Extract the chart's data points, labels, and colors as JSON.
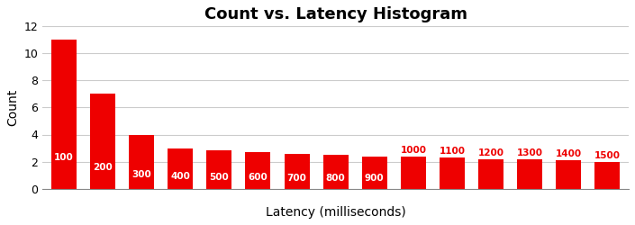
{
  "title": "Count vs. Latency Histogram",
  "xlabel": "Latency (milliseconds)",
  "ylabel": "Count",
  "bar_labels": [
    100,
    200,
    300,
    400,
    500,
    600,
    700,
    800,
    900,
    1000,
    1100,
    1200,
    1300,
    1400,
    1500
  ],
  "bar_heights": [
    11,
    7,
    4,
    3.0,
    2.85,
    2.7,
    2.6,
    2.5,
    2.4,
    2.4,
    2.3,
    2.2,
    2.2,
    2.1,
    2.0
  ],
  "bar_color": "#ee0000",
  "label_color_white": "#ffffff",
  "label_color_red": "#ee0000",
  "white_label_indices": [
    0,
    1,
    2,
    3,
    4,
    5,
    6,
    7,
    8
  ],
  "red_label_indices": [
    9,
    10,
    11,
    12,
    13,
    14
  ],
  "ylim": [
    0,
    12
  ],
  "yticks": [
    0,
    2,
    4,
    6,
    8,
    10,
    12
  ],
  "background_color": "#ffffff",
  "grid_color": "#cccccc",
  "title_fontsize": 13,
  "axis_label_fontsize": 10,
  "bar_label_fontsize": 7.5,
  "title_fontweight": "bold",
  "bar_width": 0.65,
  "figsize": [
    7.05,
    2.5
  ],
  "dpi": 100
}
